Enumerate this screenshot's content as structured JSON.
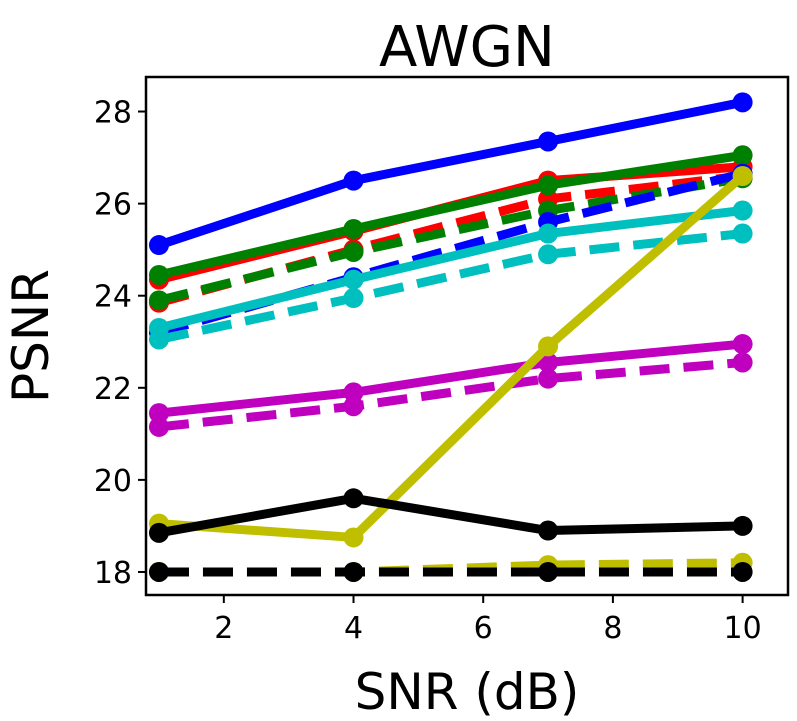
{
  "chart_data": {
    "type": "line",
    "title": "AWGN",
    "xlabel": "SNR (dB)",
    "ylabel": "PSNR",
    "xlim": [
      0.8,
      10.7
    ],
    "ylim": [
      17.5,
      28.75
    ],
    "xticks": [
      2,
      4,
      6,
      8,
      10
    ],
    "yticks": [
      18,
      20,
      22,
      24,
      26,
      28
    ],
    "grid": false,
    "x": [
      1,
      4,
      7,
      10
    ],
    "series": [
      {
        "name": "blue-solid",
        "color": "#0000ff",
        "dashed": false,
        "values": [
          25.1,
          26.5,
          27.35,
          28.2
        ]
      },
      {
        "name": "red-solid",
        "color": "#ff0000",
        "dashed": false,
        "values": [
          24.35,
          25.4,
          26.5,
          26.8
        ]
      },
      {
        "name": "red-dashed",
        "color": "#ff0000",
        "dashed": true,
        "values": [
          23.85,
          25.0,
          26.1,
          26.6
        ]
      },
      {
        "name": "green-solid",
        "color": "#008000",
        "dashed": false,
        "values": [
          24.45,
          25.45,
          26.4,
          27.05
        ]
      },
      {
        "name": "green-dashed",
        "color": "#008000",
        "dashed": true,
        "values": [
          23.9,
          24.95,
          25.85,
          26.55
        ]
      },
      {
        "name": "blue-dashed",
        "color": "#0000ff",
        "dashed": true,
        "values": [
          23.2,
          24.4,
          25.6,
          26.65
        ]
      },
      {
        "name": "cyan-solid",
        "color": "#00bfbf",
        "dashed": false,
        "values": [
          23.3,
          24.35,
          25.35,
          25.85
        ]
      },
      {
        "name": "cyan-dashed",
        "color": "#00bfbf",
        "dashed": true,
        "values": [
          23.05,
          23.95,
          24.9,
          25.35
        ]
      },
      {
        "name": "magenta-solid",
        "color": "#bf00bf",
        "dashed": false,
        "values": [
          21.45,
          21.9,
          22.55,
          22.95
        ]
      },
      {
        "name": "magenta-dashed",
        "color": "#bf00bf",
        "dashed": true,
        "values": [
          21.15,
          21.6,
          22.2,
          22.55
        ]
      },
      {
        "name": "olive-solid",
        "color": "#bfbf00",
        "dashed": false,
        "values": [
          19.05,
          18.75,
          22.9,
          26.6
        ]
      },
      {
        "name": "olive-dashed",
        "color": "#bfbf00",
        "dashed": true,
        "values": [
          18.0,
          18.0,
          18.15,
          18.2
        ]
      },
      {
        "name": "black-solid",
        "color": "#000000",
        "dashed": false,
        "values": [
          18.85,
          19.6,
          18.9,
          19.0
        ]
      },
      {
        "name": "black-dashed",
        "color": "#000000",
        "dashed": true,
        "values": [
          18.0,
          18.0,
          18.0,
          18.0
        ]
      }
    ]
  }
}
